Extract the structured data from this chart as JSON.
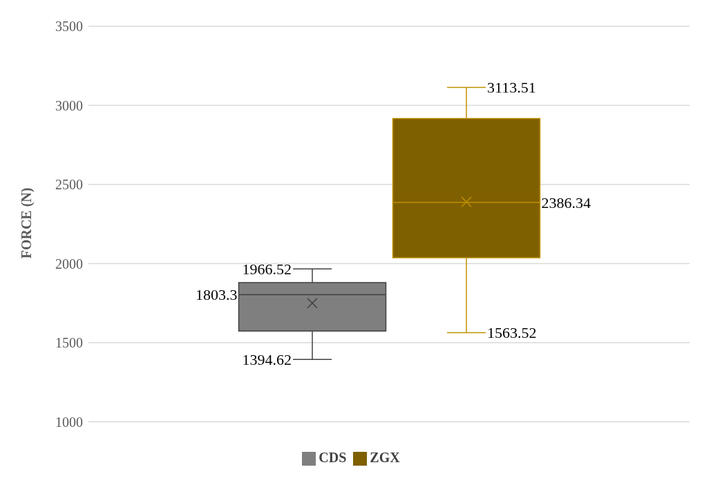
{
  "chart_data": {
    "type": "box",
    "ylabel": "FORCE (N)",
    "categories": [
      null
    ],
    "series": [
      {
        "name": "CDS",
        "color": "#7f7f7f",
        "boxes": [
          {
            "low": 1394.62,
            "q1": 1574,
            "median": 1803.3,
            "q3": 1880,
            "high": 1966.52,
            "mean": 1750
          }
        ]
      },
      {
        "name": "ZGX",
        "color": "#7f6000",
        "boxes": [
          {
            "low": 1563.52,
            "q1": 2037,
            "median": 2386.34,
            "q3": 2917,
            "high": 3113.51,
            "mean": 2390
          }
        ]
      }
    ],
    "ylim": [
      1000,
      3500
    ],
    "yticks": [
      1000,
      1500,
      2000,
      2500,
      3000,
      3500
    ],
    "grid": "y",
    "legend": "bottom",
    "marker": "cross",
    "annotations": [
      "1966.52",
      "1803.3",
      "1394.62",
      "3113.51",
      "2386.34",
      "1563.52"
    ]
  }
}
